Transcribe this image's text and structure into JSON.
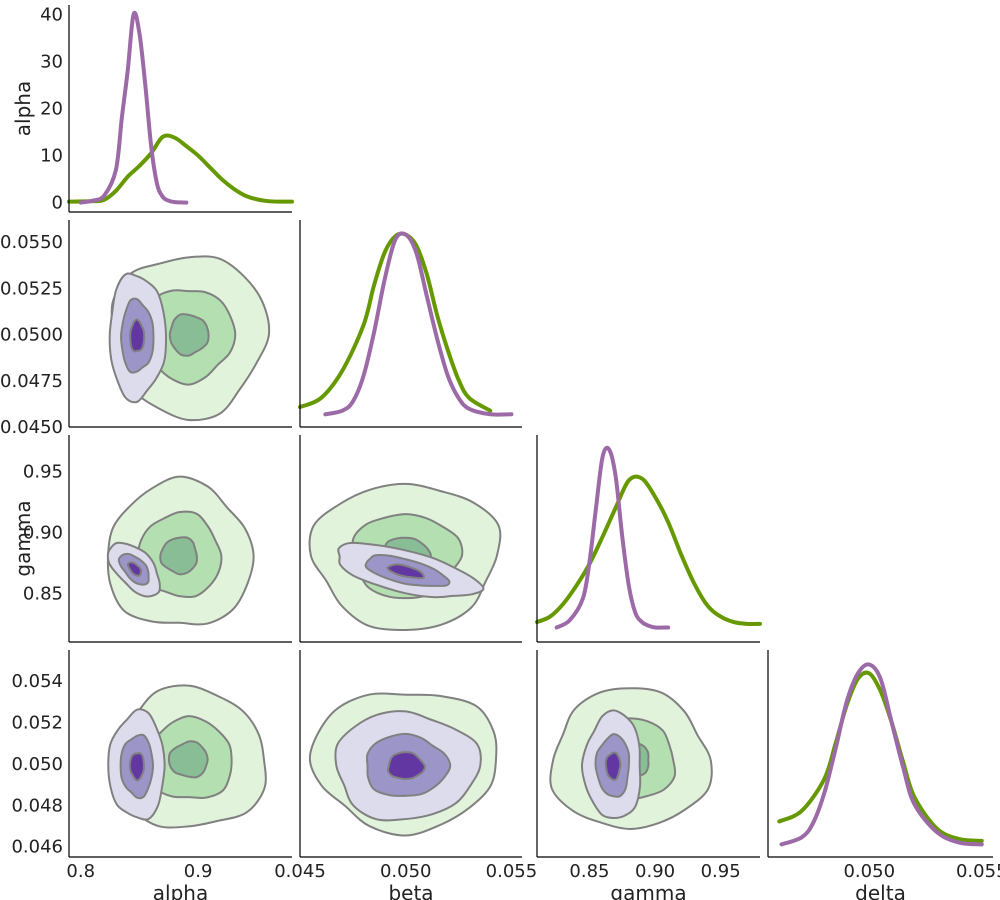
{
  "chart_data": {
    "type": "corner",
    "variables": [
      "alpha",
      "beta",
      "gamma",
      "delta"
    ],
    "series": [
      {
        "name": "",
        "color": "#669900",
        "fill_levels": [
          "#e2f3dc",
          "#b4e0b1",
          "#88bd95"
        ],
        "contour_stroke": "#808080"
      },
      {
        "name": "",
        "color": "#9c6aa6",
        "fill_levels": [
          "#dddcec",
          "#9c95c8",
          "#6337a1"
        ],
        "contour_stroke": "#808080"
      }
    ],
    "axes": {
      "alpha": {
        "range": [
          0.79,
          0.98
        ],
        "ticks": [
          "0.8",
          "0.9"
        ],
        "tick_values": [
          0.8,
          0.9
        ]
      },
      "beta": {
        "range": [
          0.045,
          0.0555
        ],
        "ticks": [
          "0.045",
          "0.050",
          "0.055"
        ],
        "tick_values": [
          0.045,
          0.05,
          0.055
        ]
      },
      "gamma": {
        "range": [
          0.81,
          0.98
        ],
        "ticks": [
          "0.85",
          "0.90",
          "0.95"
        ],
        "tick_values": [
          0.85,
          0.9,
          0.95
        ]
      },
      "delta": {
        "range": [
          0.0455,
          0.0555
        ],
        "ticks": [
          "0.050",
          "0.055"
        ],
        "tick_values": [
          0.05,
          0.055
        ]
      }
    },
    "row_ticks": {
      "alpha": {
        "range": [
          -2,
          42
        ],
        "ticks": [
          "0",
          "10",
          "20",
          "30",
          "40"
        ],
        "tick_values": [
          0,
          10,
          20,
          30,
          40
        ]
      },
      "beta": {
        "range": [
          0.045,
          0.0562
        ],
        "ticks": [
          "0.0450",
          "0.0475",
          "0.0500",
          "0.0525",
          "0.0550"
        ],
        "tick_values": [
          0.045,
          0.0475,
          0.05,
          0.0525,
          0.055
        ]
      },
      "gamma": {
        "range": [
          0.81,
          0.98
        ],
        "ticks": [
          "0.85",
          "0.90",
          "0.95"
        ],
        "tick_values": [
          0.85,
          0.9,
          0.95
        ]
      },
      "delta": {
        "range": [
          0.0455,
          0.0555
        ],
        "ticks": [
          "0.046",
          "0.048",
          "0.050",
          "0.052",
          "0.054"
        ],
        "tick_values": [
          0.046,
          0.048,
          0.05,
          0.052,
          0.054
        ]
      }
    },
    "marginals": [
      {
        "variable": "alpha",
        "series": [
          {
            "x": [
              0.79,
              0.81,
              0.82,
              0.83,
              0.84,
              0.85,
              0.86,
              0.87,
              0.88,
              0.89,
              0.9,
              0.91,
              0.92,
              0.93,
              0.94,
              0.95,
              0.96,
              0.97,
              0.98
            ],
            "y": [
              0.2,
              0.3,
              0.6,
              2.5,
              5.5,
              7.8,
              10.5,
              14,
              13.8,
              12,
              10,
              7.5,
              5,
              3,
              1.5,
              0.7,
              0.3,
              0.2,
              0.2
            ]
          },
          {
            "x": [
              0.8,
              0.81,
              0.82,
              0.83,
              0.835,
              0.84,
              0.845,
              0.85,
              0.855,
              0.86,
              0.865,
              0.87,
              0.875,
              0.88,
              0.885,
              0.89
            ],
            "y": [
              0,
              0.4,
              1.5,
              7,
              18,
              28,
              40,
              36,
              25,
              12,
              4,
              1.2,
              0.4,
              0.1,
              0.05,
              0
            ]
          }
        ]
      },
      {
        "variable": "beta",
        "series": [
          {
            "x": [
              0.045,
              0.046,
              0.047,
              0.048,
              0.0485,
              0.049,
              0.0495,
              0.05,
              0.0505,
              0.051,
              0.0515,
              0.052,
              0.0525,
              0.053,
              0.054
            ],
            "y": [
              0.05,
              0.1,
              0.25,
              0.5,
              0.72,
              0.9,
              0.99,
              1.0,
              0.94,
              0.78,
              0.55,
              0.36,
              0.2,
              0.1,
              0.03
            ]
          },
          {
            "x": [
              0.0462,
              0.047,
              0.0475,
              0.048,
              0.0485,
              0.049,
              0.0495,
              0.05,
              0.0505,
              0.051,
              0.0515,
              0.052,
              0.0525,
              0.053,
              0.054,
              0.055
            ],
            "y": [
              0.01,
              0.03,
              0.08,
              0.22,
              0.46,
              0.75,
              0.97,
              1.0,
              0.9,
              0.66,
              0.42,
              0.22,
              0.1,
              0.04,
              0.01,
              0.01
            ]
          }
        ]
      },
      {
        "variable": "gamma",
        "series": [
          {
            "x": [
              0.81,
              0.82,
              0.83,
              0.84,
              0.85,
              0.86,
              0.87,
              0.88,
              0.89,
              0.9,
              0.91,
              0.92,
              0.93,
              0.94,
              0.95,
              0.96,
              0.97,
              0.98
            ],
            "y": [
              0.05,
              0.08,
              0.15,
              0.25,
              0.37,
              0.52,
              0.68,
              0.83,
              0.84,
              0.74,
              0.6,
              0.42,
              0.26,
              0.14,
              0.08,
              0.05,
              0.04,
              0.04
            ]
          },
          {
            "x": [
              0.825,
              0.835,
              0.845,
              0.85,
              0.855,
              0.86,
              0.865,
              0.87,
              0.875,
              0.88,
              0.885,
              0.89,
              0.895,
              0.9,
              0.91
            ],
            "y": [
              0.02,
              0.06,
              0.18,
              0.38,
              0.68,
              0.96,
              1.0,
              0.85,
              0.52,
              0.25,
              0.1,
              0.05,
              0.03,
              0.02,
              0.02
            ]
          }
        ]
      },
      {
        "variable": "delta",
        "series": [
          {
            "x": [
              0.046,
              0.047,
              0.048,
              0.0485,
              0.049,
              0.0495,
              0.05,
              0.0505,
              0.051,
              0.0515,
              0.052,
              0.053,
              0.054,
              0.055
            ],
            "y": [
              0.14,
              0.2,
              0.38,
              0.58,
              0.8,
              0.95,
              0.98,
              0.88,
              0.7,
              0.48,
              0.28,
              0.1,
              0.04,
              0.03
            ]
          },
          {
            "x": [
              0.0461,
              0.047,
              0.0475,
              0.048,
              0.0485,
              0.049,
              0.0495,
              0.05,
              0.0505,
              0.051,
              0.0515,
              0.052,
              0.053,
              0.054,
              0.055
            ],
            "y": [
              0.01,
              0.05,
              0.13,
              0.3,
              0.55,
              0.82,
              0.98,
              1.03,
              0.95,
              0.7,
              0.45,
              0.24,
              0.08,
              0.02,
              0.01
            ]
          }
        ]
      }
    ],
    "joint": [
      {
        "x": "alpha",
        "y": "beta",
        "series": [
          {
            "center": [
              0.892,
              0.05
            ],
            "sd": [
              0.033,
              0.0022
            ],
            "rho": 0
          },
          {
            "center": [
              0.848,
              0.0499
            ],
            "sd": [
              0.012,
              0.0017
            ],
            "rho": 0
          }
        ]
      },
      {
        "x": "alpha",
        "y": "gamma",
        "series": [
          {
            "center": [
              0.884,
              0.881
            ],
            "sd": [
              0.031,
              0.03
            ],
            "rho": 0
          },
          {
            "center": [
              0.846,
              0.87
            ],
            "sd": [
              0.011,
              0.011
            ],
            "rho": -0.55
          }
        ]
      },
      {
        "x": "beta",
        "y": "gamma",
        "series": [
          {
            "center": [
              0.05,
              0.881
            ],
            "sd": [
              0.0022,
              0.03
            ],
            "rho": 0
          },
          {
            "center": [
              0.05,
              0.868
            ],
            "sd": [
              0.0017,
              0.011
            ],
            "rho": -0.6
          }
        ]
      },
      {
        "x": "alpha",
        "y": "delta",
        "series": [
          {
            "center": [
              0.892,
              0.0502
            ],
            "sd": [
              0.033,
              0.0017
            ],
            "rho": 0
          },
          {
            "center": [
              0.848,
              0.0499
            ],
            "sd": [
              0.012,
              0.0013
            ],
            "rho": 0
          }
        ]
      },
      {
        "x": "beta",
        "y": "delta",
        "series": [
          {
            "center": [
              0.05,
              0.0502
            ],
            "sd": [
              0.0022,
              0.0017
            ],
            "rho": 0
          },
          {
            "center": [
              0.05,
              0.0499
            ],
            "sd": [
              0.0017,
              0.0013
            ],
            "rho": 0
          }
        ]
      },
      {
        "x": "gamma",
        "y": "delta",
        "series": [
          {
            "center": [
              0.881,
              0.0502
            ],
            "sd": [
              0.03,
              0.0017
            ],
            "rho": 0
          },
          {
            "center": [
              0.868,
              0.0499
            ],
            "sd": [
              0.011,
              0.0013
            ],
            "rho": 0
          }
        ]
      }
    ],
    "contour_levels_sd": [
      2.0,
      1.15,
      0.5
    ],
    "grid": false,
    "legend": "none"
  }
}
